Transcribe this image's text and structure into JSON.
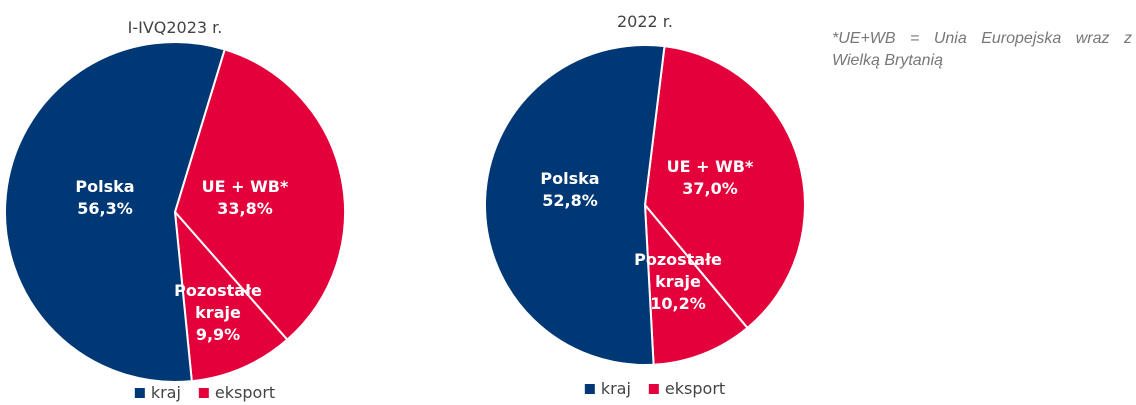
{
  "note": "*UE+WB = Unia Europejska wraz z Wielką Brytanią",
  "chart_data": [
    {
      "type": "pie",
      "title": "I-IVQ2023 r.",
      "categories": [
        "UE + WB*",
        "Pozostałe kraje",
        "Polska"
      ],
      "values": [
        33.8,
        9.9,
        56.3
      ],
      "value_labels": [
        "33,8%",
        "9,9%",
        "56,3%"
      ],
      "colors": [
        "#e4003a",
        "#e4003a",
        "#003876"
      ],
      "legend": [
        {
          "name": "kraj",
          "color": "#003876"
        },
        {
          "name": "eksport",
          "color": "#e4003a"
        }
      ]
    },
    {
      "type": "pie",
      "title": "2022 r.",
      "categories": [
        "UE + WB*",
        "Pozostałe kraje",
        "Polska"
      ],
      "values": [
        37.0,
        10.2,
        52.8
      ],
      "value_labels": [
        "37,0%",
        "10,2%",
        "52,8%"
      ],
      "colors": [
        "#e4003a",
        "#e4003a",
        "#003876"
      ],
      "legend": [
        {
          "name": "kraj",
          "color": "#003876"
        },
        {
          "name": "eksport",
          "color": "#e4003a"
        }
      ]
    }
  ]
}
